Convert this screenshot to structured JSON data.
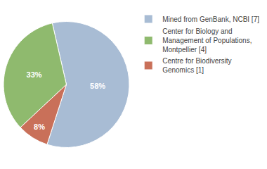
{
  "chart_data": {
    "type": "pie",
    "categories": [
      "Mined from GenBank, NCBI [7]",
      "Center for Biology and\nManagement of Populations,\nMontpellier [4]",
      "Centre for Biodiversity\nGenomics [1]"
    ],
    "values": [
      58,
      33,
      8
    ],
    "value_labels": [
      "58%",
      "33%",
      "8%"
    ],
    "colors": [
      "#a8bcd4",
      "#8fba6e",
      "#c97059"
    ],
    "data_labels": true,
    "legend": "right"
  }
}
